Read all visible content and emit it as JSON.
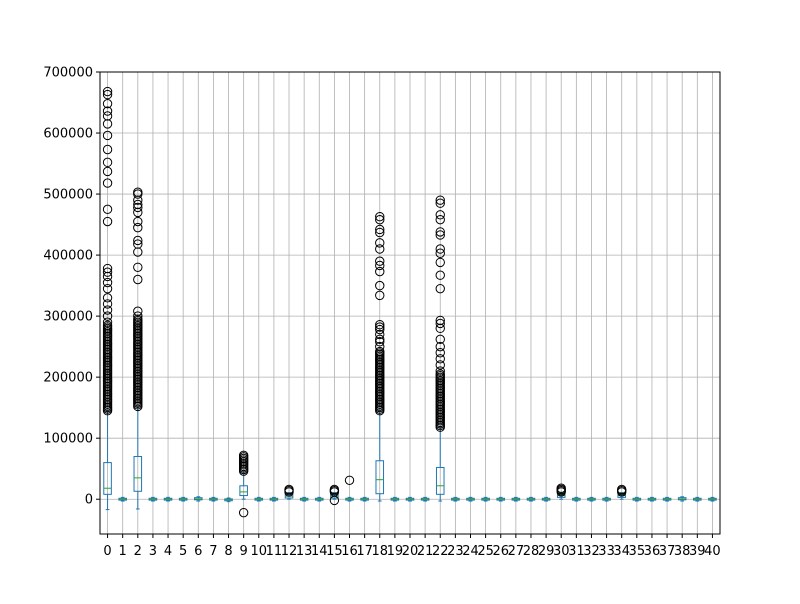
{
  "chart_data": {
    "type": "boxplot",
    "title": "",
    "xlabel": "",
    "ylabel": "",
    "ylim": [
      -57000,
      700000
    ],
    "grid": true,
    "categories": [
      "0",
      "1",
      "2",
      "3",
      "4",
      "5",
      "6",
      "7",
      "8",
      "9",
      "10",
      "11",
      "12",
      "13",
      "14",
      "15",
      "16",
      "17",
      "18",
      "19",
      "20",
      "21",
      "22",
      "23",
      "24",
      "25",
      "26",
      "27",
      "28",
      "29",
      "30",
      "31",
      "32",
      "33",
      "34",
      "35",
      "36",
      "37",
      "38",
      "39",
      "40"
    ],
    "y_ticks": [
      0,
      100000,
      200000,
      300000,
      400000,
      500000,
      600000,
      700000
    ],
    "y_tick_labels": [
      "0",
      "100000",
      "200000",
      "300000",
      "400000",
      "500000",
      "600000",
      "700000"
    ],
    "colors": {
      "box": "#1f77b4",
      "median": "#2ca02c",
      "flier": "#000000",
      "grid": "#b0b0b0",
      "frame": "#000000"
    },
    "boxes": [
      {
        "q1": 8000,
        "med": 18000,
        "q3": 60000,
        "wlo": -17000,
        "whi": 145000,
        "dense": [
          145000,
          285000
        ],
        "fliers": [
          290000,
          300000,
          310000,
          320000,
          330000,
          345000,
          355000,
          365000,
          372000,
          378000,
          455000,
          475000,
          518000,
          537000,
          552000,
          573000,
          596000,
          615000,
          628000,
          636000,
          648000,
          663000,
          668000
        ]
      },
      {
        "q1": -1500,
        "med": 0,
        "q3": 1500,
        "wlo": -3000,
        "whi": 3000,
        "fliers": []
      },
      {
        "q1": 13000,
        "med": 35000,
        "q3": 70000,
        "wlo": -16000,
        "whi": 152000,
        "dense": [
          152000,
          295000
        ],
        "fliers": [
          300000,
          308000,
          360000,
          380000,
          405000,
          418000,
          424000,
          445000,
          455000,
          470000,
          478000,
          483000,
          490000,
          500000,
          503000
        ]
      },
      {
        "q1": -1500,
        "med": 0,
        "q3": 1500,
        "wlo": -3000,
        "whi": 3000,
        "fliers": []
      },
      {
        "q1": -1500,
        "med": 0,
        "q3": 1500,
        "wlo": -3000,
        "whi": 3000,
        "fliers": []
      },
      {
        "q1": -1500,
        "med": 0,
        "q3": 1500,
        "wlo": -3000,
        "whi": 3000,
        "fliers": []
      },
      {
        "q1": -1000,
        "med": 500,
        "q3": 2500,
        "wlo": -3000,
        "whi": 4000,
        "fliers": []
      },
      {
        "q1": -1500,
        "med": 0,
        "q3": 1500,
        "wlo": -3000,
        "whi": 3000,
        "fliers": []
      },
      {
        "q1": -2500,
        "med": -1000,
        "q3": 500,
        "wlo": -4000,
        "whi": 2000,
        "fliers": []
      },
      {
        "q1": 6000,
        "med": 12000,
        "q3": 22000,
        "wlo": 0,
        "whi": 45000,
        "dense": [
          46000,
          72000
        ],
        "fliers": [
          -22000
        ]
      },
      {
        "q1": -1500,
        "med": 0,
        "q3": 1500,
        "wlo": -3000,
        "whi": 3000,
        "fliers": []
      },
      {
        "q1": -1500,
        "med": 0,
        "q3": 1500,
        "wlo": -3000,
        "whi": 3000,
        "fliers": []
      },
      {
        "q1": 2000,
        "med": 5000,
        "q3": 9000,
        "wlo": 0,
        "whi": 11000,
        "fliers": [
          12000,
          14000,
          16000
        ]
      },
      {
        "q1": -1500,
        "med": 0,
        "q3": 1500,
        "wlo": -3000,
        "whi": 3000,
        "fliers": []
      },
      {
        "q1": -1500,
        "med": 0,
        "q3": 1500,
        "wlo": -3000,
        "whi": 3000,
        "fliers": []
      },
      {
        "q1": 2000,
        "med": 5000,
        "q3": 9000,
        "wlo": 0,
        "whi": 11000,
        "fliers": [
          -2000,
          12000,
          14000,
          16000
        ]
      },
      {
        "q1": -1500,
        "med": 0,
        "q3": 1500,
        "wlo": -3000,
        "whi": 3000,
        "fliers": [
          31000
        ]
      },
      {
        "q1": -1500,
        "med": 0,
        "q3": 1500,
        "wlo": -3000,
        "whi": 3000,
        "fliers": []
      },
      {
        "q1": 9000,
        "med": 32000,
        "q3": 63000,
        "wlo": -3000,
        "whi": 145000,
        "dense": [
          145000,
          242000
        ],
        "fliers": [
          250000,
          258000,
          262000,
          270000,
          278000,
          282000,
          286000,
          334000,
          350000,
          373000,
          383000,
          390000,
          410000,
          420000,
          437000,
          442000,
          458000,
          463000
        ]
      },
      {
        "q1": -1500,
        "med": 0,
        "q3": 1500,
        "wlo": -3000,
        "whi": 3000,
        "fliers": []
      },
      {
        "q1": -1500,
        "med": 0,
        "q3": 1500,
        "wlo": -3000,
        "whi": 3000,
        "fliers": []
      },
      {
        "q1": -1500,
        "med": 0,
        "q3": 1500,
        "wlo": -3000,
        "whi": 3000,
        "fliers": []
      },
      {
        "q1": 8000,
        "med": 22000,
        "q3": 52000,
        "wlo": -3000,
        "whi": 118000,
        "dense": [
          118000,
          205000
        ],
        "fliers": [
          210000,
          220000,
          230000,
          240000,
          250000,
          262000,
          280000,
          288000,
          293000,
          345000,
          367000,
          388000,
          403000,
          410000,
          433000,
          438000,
          458000,
          466000,
          485000,
          490000
        ]
      },
      {
        "q1": -1500,
        "med": 0,
        "q3": 1500,
        "wlo": -3000,
        "whi": 3000,
        "fliers": []
      },
      {
        "q1": -1500,
        "med": 0,
        "q3": 1500,
        "wlo": -3000,
        "whi": 3000,
        "fliers": []
      },
      {
        "q1": -1500,
        "med": 0,
        "q3": 1500,
        "wlo": -3000,
        "whi": 3000,
        "fliers": []
      },
      {
        "q1": -1500,
        "med": 0,
        "q3": 1500,
        "wlo": -3000,
        "whi": 3000,
        "fliers": []
      },
      {
        "q1": -1500,
        "med": 0,
        "q3": 1500,
        "wlo": -3000,
        "whi": 3000,
        "fliers": []
      },
      {
        "q1": -1500,
        "med": 0,
        "q3": 1500,
        "wlo": -3000,
        "whi": 3000,
        "fliers": []
      },
      {
        "q1": -1500,
        "med": 0,
        "q3": 1500,
        "wlo": -3000,
        "whi": 3000,
        "fliers": []
      },
      {
        "q1": 3000,
        "med": 6000,
        "q3": 9000,
        "wlo": 0,
        "whi": 11000,
        "fliers": [
          12000,
          14000,
          16000,
          18000
        ]
      },
      {
        "q1": -1500,
        "med": 0,
        "q3": 1500,
        "wlo": -3000,
        "whi": 3000,
        "fliers": []
      },
      {
        "q1": -1500,
        "med": 0,
        "q3": 1500,
        "wlo": -3000,
        "whi": 3000,
        "fliers": []
      },
      {
        "q1": -1500,
        "med": 0,
        "q3": 1500,
        "wlo": -3000,
        "whi": 3000,
        "fliers": []
      },
      {
        "q1": 3000,
        "med": 6000,
        "q3": 9000,
        "wlo": 0,
        "whi": 11000,
        "fliers": [
          12000,
          14000,
          16000
        ]
      },
      {
        "q1": -1500,
        "med": 0,
        "q3": 1500,
        "wlo": -3000,
        "whi": 3000,
        "fliers": []
      },
      {
        "q1": -1500,
        "med": 0,
        "q3": 1500,
        "wlo": -3000,
        "whi": 3000,
        "fliers": []
      },
      {
        "q1": -1500,
        "med": 0,
        "q3": 1500,
        "wlo": -3000,
        "whi": 3000,
        "fliers": []
      },
      {
        "q1": -1000,
        "med": 500,
        "q3": 2500,
        "wlo": -3000,
        "whi": 4000,
        "fliers": []
      },
      {
        "q1": -1500,
        "med": 0,
        "q3": 1500,
        "wlo": -3000,
        "whi": 3000,
        "fliers": []
      },
      {
        "q1": -1500,
        "med": 0,
        "q3": 1500,
        "wlo": -3000,
        "whi": 3000,
        "fliers": []
      }
    ]
  }
}
